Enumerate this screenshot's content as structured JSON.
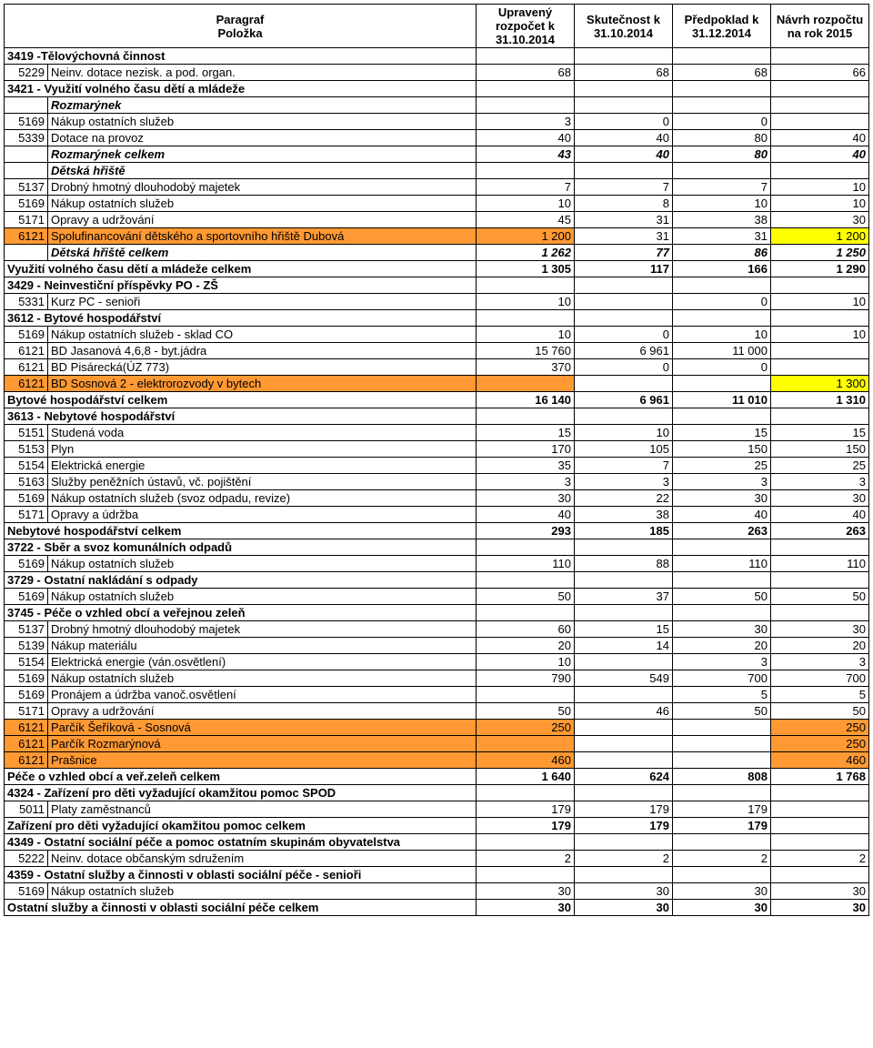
{
  "header": {
    "paragraf": "Paragraf",
    "polozka": "Položka",
    "col1": "Upravený rozpočet k 31.10.2014",
    "col2": "Skutečnost k 31.10.2014",
    "col3": "Předpoklad k 31.12.2014",
    "col4": "Návrh rozpočtu na rok 2015"
  },
  "colors": {
    "yellow": "#ffff00",
    "orange": "#ff9933"
  },
  "rows": [
    {
      "type": "section",
      "label": "3419 -Tělovýchovná činnost"
    },
    {
      "type": "item",
      "code": "5229",
      "label": "Neinv. dotace nezisk. a pod. organ.",
      "v": [
        "68",
        "68",
        "68",
        "66"
      ]
    },
    {
      "type": "section",
      "label": "3421 - Využití volného času dětí a mládeže"
    },
    {
      "type": "subhead",
      "label": "Rozmarýnek"
    },
    {
      "type": "item",
      "code": "5169",
      "label": "Nákup ostatních služeb",
      "v": [
        "3",
        "0",
        "0",
        ""
      ]
    },
    {
      "type": "item",
      "code": "5339",
      "label": "Dotace na provoz",
      "v": [
        "40",
        "40",
        "80",
        "40"
      ]
    },
    {
      "type": "total-bi",
      "label": "Rozmarýnek celkem",
      "v": [
        "43",
        "40",
        "80",
        "40"
      ]
    },
    {
      "type": "subhead",
      "label": "Dětská hřiště"
    },
    {
      "type": "item",
      "code": "5137",
      "label": "Drobný hmotný dlouhodobý majetek",
      "v": [
        "7",
        "7",
        "7",
        "10"
      ]
    },
    {
      "type": "item",
      "code": "5169",
      "label": "Nákup ostatních služeb",
      "v": [
        "10",
        "8",
        "10",
        "10"
      ]
    },
    {
      "type": "item",
      "code": "5171",
      "label": "Opravy a udržování",
      "v": [
        "45",
        "31",
        "38",
        "30"
      ]
    },
    {
      "type": "item",
      "code": "6121",
      "label": "Spolufinancování dětského a  sportovního hřiště Dubová",
      "v": [
        "1 200",
        "31",
        "31",
        "1 200"
      ],
      "hl": [
        "orange",
        "",
        "",
        "yellow"
      ]
    },
    {
      "type": "total-bi",
      "label": "Dětská hřiště celkem",
      "v": [
        "1 262",
        "77",
        "86",
        "1 250"
      ]
    },
    {
      "type": "total",
      "label": "Využití volného času dětí a mládeže celkem",
      "v": [
        "1 305",
        "117",
        "166",
        "1 290"
      ]
    },
    {
      "type": "section",
      "label": "3429 - Neinvestiční příspěvky PO - ZŠ"
    },
    {
      "type": "item",
      "code": "5331",
      "label": "Kurz PC - senioři",
      "v": [
        "10",
        "",
        "0",
        "10"
      ]
    },
    {
      "type": "section",
      "label": "3612 - Bytové hospodářství"
    },
    {
      "type": "item",
      "code": "5169",
      "label": "Nákup ostatních služeb - sklad CO",
      "v": [
        "10",
        "0",
        "10",
        "10"
      ]
    },
    {
      "type": "item",
      "code": "6121",
      "label": "BD Jasanová 4,6,8 - byt.jádra",
      "v": [
        "15 760",
        "6 961",
        "11 000",
        ""
      ]
    },
    {
      "type": "item",
      "code": "6121",
      "label": "BD Pisárecká(ÚZ 773)",
      "v": [
        "370",
        "0",
        "0",
        ""
      ]
    },
    {
      "type": "item",
      "code": "6121",
      "label": "BD Sosnová 2  - elektrorozvody v bytech",
      "v": [
        "",
        "",
        "",
        "1 300"
      ],
      "hl": [
        "orange",
        "",
        "",
        "yellow"
      ]
    },
    {
      "type": "total",
      "label": "Bytové hospodářství celkem",
      "v": [
        "16 140",
        "6 961",
        "11 010",
        "1 310"
      ]
    },
    {
      "type": "section",
      "label": "3613 - Nebytové hospodářství"
    },
    {
      "type": "item",
      "code": "5151",
      "label": "Studená voda",
      "v": [
        "15",
        "10",
        "15",
        "15"
      ]
    },
    {
      "type": "item",
      "code": "5153",
      "label": "Plyn",
      "v": [
        "170",
        "105",
        "150",
        "150"
      ]
    },
    {
      "type": "item",
      "code": "5154",
      "label": "Elektrická energie",
      "v": [
        "35",
        "7",
        "25",
        "25"
      ]
    },
    {
      "type": "item",
      "code": "5163",
      "label": "Služby peněžních ústavů, vč. pojištění",
      "v": [
        "3",
        "3",
        "3",
        "3"
      ]
    },
    {
      "type": "item",
      "code": "5169",
      "label": "Nákup ostatních služeb  (svoz odpadu, revize)",
      "v": [
        "30",
        "22",
        "30",
        "30"
      ]
    },
    {
      "type": "item",
      "code": "5171",
      "label": "Opravy a údržba",
      "v": [
        "40",
        "38",
        "40",
        "40"
      ]
    },
    {
      "type": "total",
      "label": "Nebytové hospodářství celkem",
      "v": [
        "293",
        "185",
        "263",
        "263"
      ]
    },
    {
      "type": "section",
      "label": "3722 - Sběr a svoz komunálních odpadů"
    },
    {
      "type": "item",
      "code": "5169",
      "label": "Nákup ostatních služeb",
      "v": [
        "110",
        "88",
        "110",
        "110"
      ]
    },
    {
      "type": "section",
      "label": "3729 - Ostatní nakládání s odpady"
    },
    {
      "type": "item",
      "code": "5169",
      "label": "Nákup ostatních služeb",
      "v": [
        "50",
        "37",
        "50",
        "50"
      ]
    },
    {
      "type": "section",
      "label": "3745 - Péče o vzhled obcí a veřejnou zeleň"
    },
    {
      "type": "item",
      "code": "5137",
      "label": "Drobný hmotný dlouhodobý majetek",
      "v": [
        "60",
        "15",
        "30",
        "30"
      ]
    },
    {
      "type": "item",
      "code": "5139",
      "label": "Nákup materiálu",
      "v": [
        "20",
        "14",
        "20",
        "20"
      ]
    },
    {
      "type": "item",
      "code": "5154",
      "label": "Elektrická energie (ván.osvětlení)",
      "v": [
        "10",
        "",
        "3",
        "3"
      ]
    },
    {
      "type": "item",
      "code": "5169",
      "label": "Nákup ostatních služeb",
      "v": [
        "790",
        "549",
        "700",
        "700"
      ]
    },
    {
      "type": "item",
      "code": "5169",
      "label": "Pronájem a údržba vanoč.osvětlení",
      "v": [
        "",
        "",
        "5",
        "5"
      ]
    },
    {
      "type": "item",
      "code": "5171",
      "label": "Opravy a udržování",
      "v": [
        "50",
        "46",
        "50",
        "50"
      ]
    },
    {
      "type": "item",
      "code": "6121",
      "label": "Parčík Šeříková - Sosnová",
      "v": [
        "250",
        "",
        "",
        "250"
      ],
      "hl": [
        "orange",
        "",
        "",
        "orange"
      ]
    },
    {
      "type": "item",
      "code": "6121",
      "label": "Parčík Rozmarýnová",
      "v": [
        "",
        "",
        "",
        "250"
      ],
      "hl": [
        "orange",
        "",
        "",
        "orange"
      ]
    },
    {
      "type": "item",
      "code": "6121",
      "label": "Prašnice",
      "v": [
        "460",
        "",
        "",
        "460"
      ],
      "hl": [
        "orange",
        "",
        "",
        "orange"
      ]
    },
    {
      "type": "total",
      "label": "Péče o vzhled obcí a veř.zeleň celkem",
      "v": [
        "1 640",
        "624",
        "808",
        "1 768"
      ]
    },
    {
      "type": "section",
      "label": "4324 - Zařízení pro děti vyžadující okamžitou pomoc SPOD"
    },
    {
      "type": "item",
      "code": "5011",
      "label": "Platy zaměstnanců",
      "v": [
        "179",
        "179",
        "179",
        ""
      ]
    },
    {
      "type": "total",
      "label": "Zařízení pro děti vyžadující okamžitou pomoc celkem",
      "v": [
        "179",
        "179",
        "179",
        ""
      ]
    },
    {
      "type": "section",
      "label": "4349 - Ostatní sociální péče a pomoc ostatním skupinám obyvatelstva"
    },
    {
      "type": "item",
      "code": "5222",
      "label": "Neinv. dotace občanským sdružením",
      "v": [
        "2",
        "2",
        "2",
        "2"
      ]
    },
    {
      "type": "section",
      "label": "4359 - Ostatní služby a činnosti v oblasti sociální péče - senioři"
    },
    {
      "type": "item",
      "code": "5169",
      "label": "Nákup ostatních služeb",
      "v": [
        "30",
        "30",
        "30",
        "30"
      ]
    },
    {
      "type": "total",
      "label": "Ostatní služby a činnosti v oblasti sociální péče celkem",
      "v": [
        "30",
        "30",
        "30",
        "30"
      ]
    }
  ]
}
